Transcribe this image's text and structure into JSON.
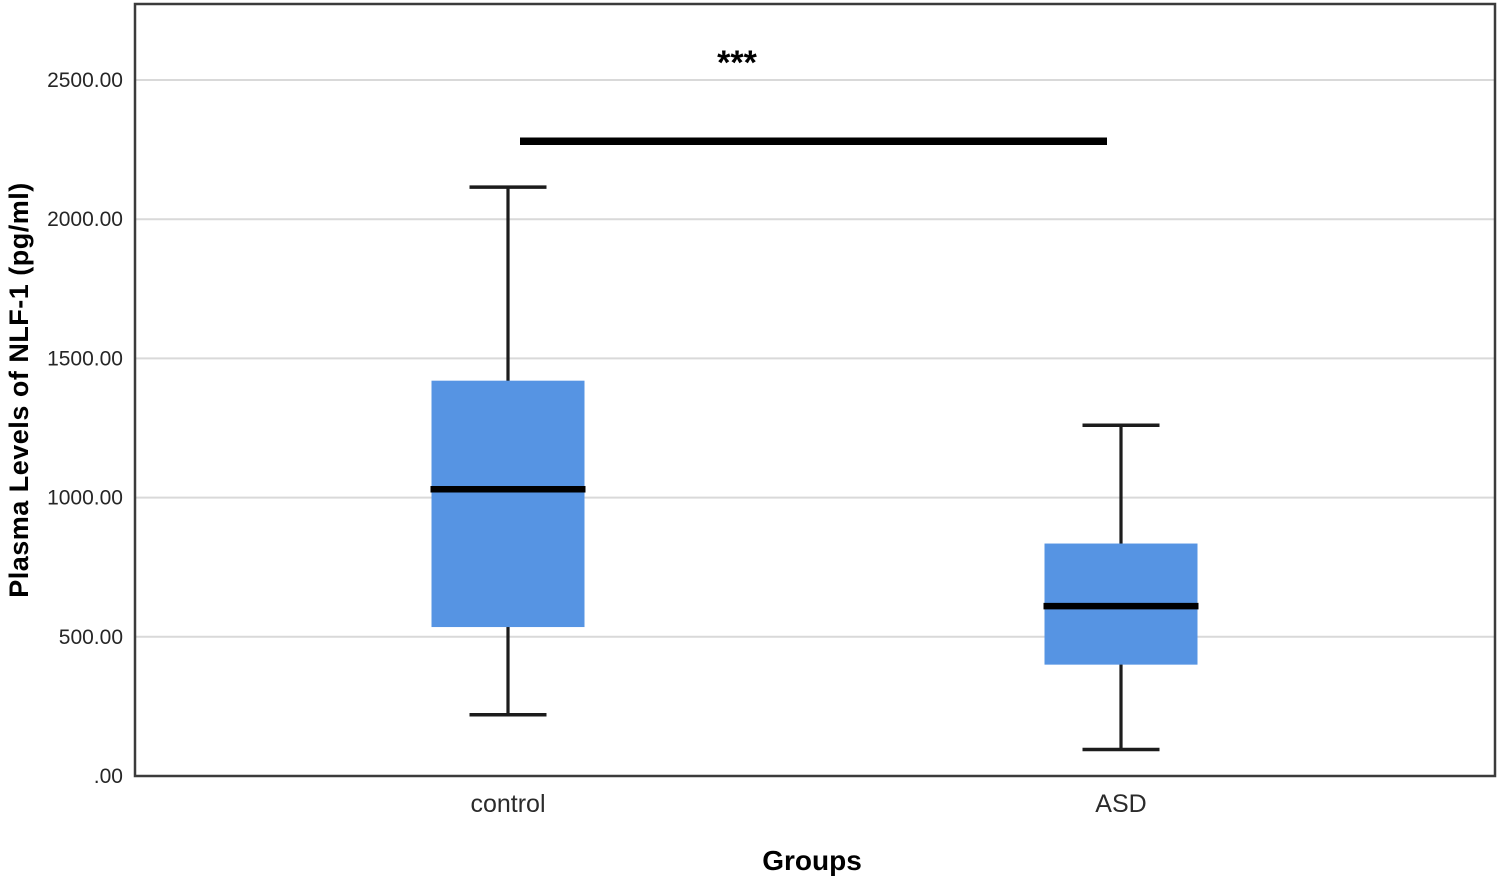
{
  "figure": {
    "type_label": "boxplot"
  },
  "chart_data": {
    "type": "boxplot",
    "title": "",
    "xlabel": "Groups",
    "ylabel": "Plasma Levels of NLF-1 (pg/ml)",
    "ylim": [
      0,
      2773
    ],
    "grid": "horizontal",
    "legend": "none",
    "yticks": [
      {
        "value": 0,
        "label": ".00"
      },
      {
        "value": 500,
        "label": "500.00"
      },
      {
        "value": 1000,
        "label": "1000.00"
      },
      {
        "value": 1500,
        "label": "1500.00"
      },
      {
        "value": 2000,
        "label": "2000.00"
      },
      {
        "value": 2500,
        "label": "2500.00"
      }
    ],
    "categories": [
      "control",
      "ASD"
    ],
    "series": [
      {
        "name": "control",
        "whisker_low": 220,
        "q1": 535,
        "median": 1030,
        "q3": 1420,
        "whisker_high": 2115
      },
      {
        "name": "ASD",
        "whisker_low": 95,
        "q1": 400,
        "median": 610,
        "q3": 835,
        "whisker_high": 1260
      }
    ],
    "annotation": {
      "text": "***",
      "bar_y_value": 2280,
      "connects": [
        "control",
        "ASD"
      ]
    },
    "colors": {
      "box_fill": "#5694E3",
      "median_line": "#000000",
      "whisker": "#1c1c1c",
      "gridline": "#D9D9D9",
      "frame": "#3B3B3B",
      "tick_text": "#262626",
      "category_text": "#2B2B2B",
      "annotation_bar": "#000000"
    }
  }
}
